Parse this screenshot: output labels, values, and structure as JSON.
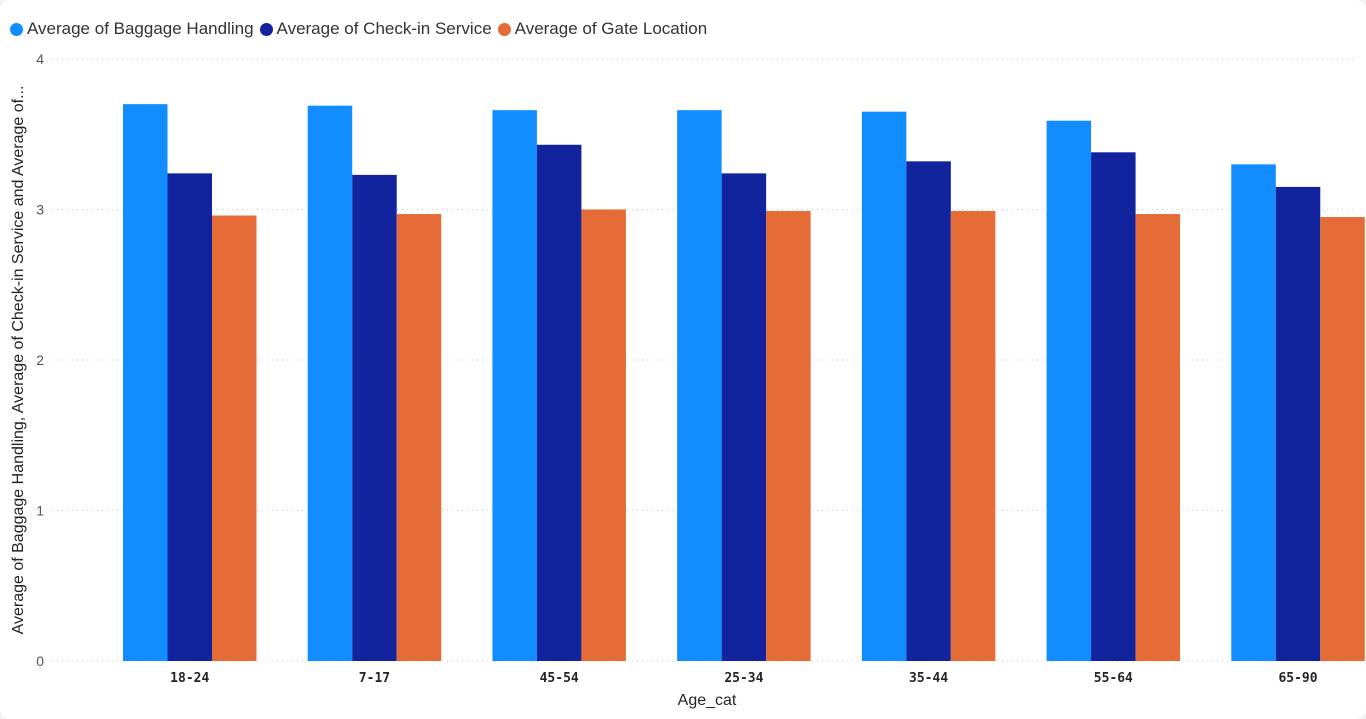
{
  "chart_data": {
    "type": "bar",
    "xlabel": "Age_cat",
    "ylabel": "Average of Baggage Handling, Average of Check-in Service and Average of...",
    "ylim": [
      0,
      4
    ],
    "yticks": [
      "0",
      "1",
      "2",
      "3",
      "4"
    ],
    "grid": true,
    "legend_position": "top-left",
    "categories": [
      "18-24",
      "7-17",
      "45-54",
      "25-34",
      "35-44",
      "55-64",
      "65-90"
    ],
    "series": [
      {
        "name": "Average of Baggage Handling",
        "color": "#118DFF",
        "values": [
          3.7,
          3.69,
          3.66,
          3.66,
          3.65,
          3.59,
          3.3
        ]
      },
      {
        "name": "Average of Check-in Service",
        "color": "#12239E",
        "values": [
          3.24,
          3.23,
          3.43,
          3.24,
          3.32,
          3.38,
          3.15
        ]
      },
      {
        "name": "Average of Gate Location",
        "color": "#E66C37",
        "values": [
          2.96,
          2.97,
          3.0,
          2.99,
          2.99,
          2.97,
          2.95
        ]
      }
    ]
  }
}
